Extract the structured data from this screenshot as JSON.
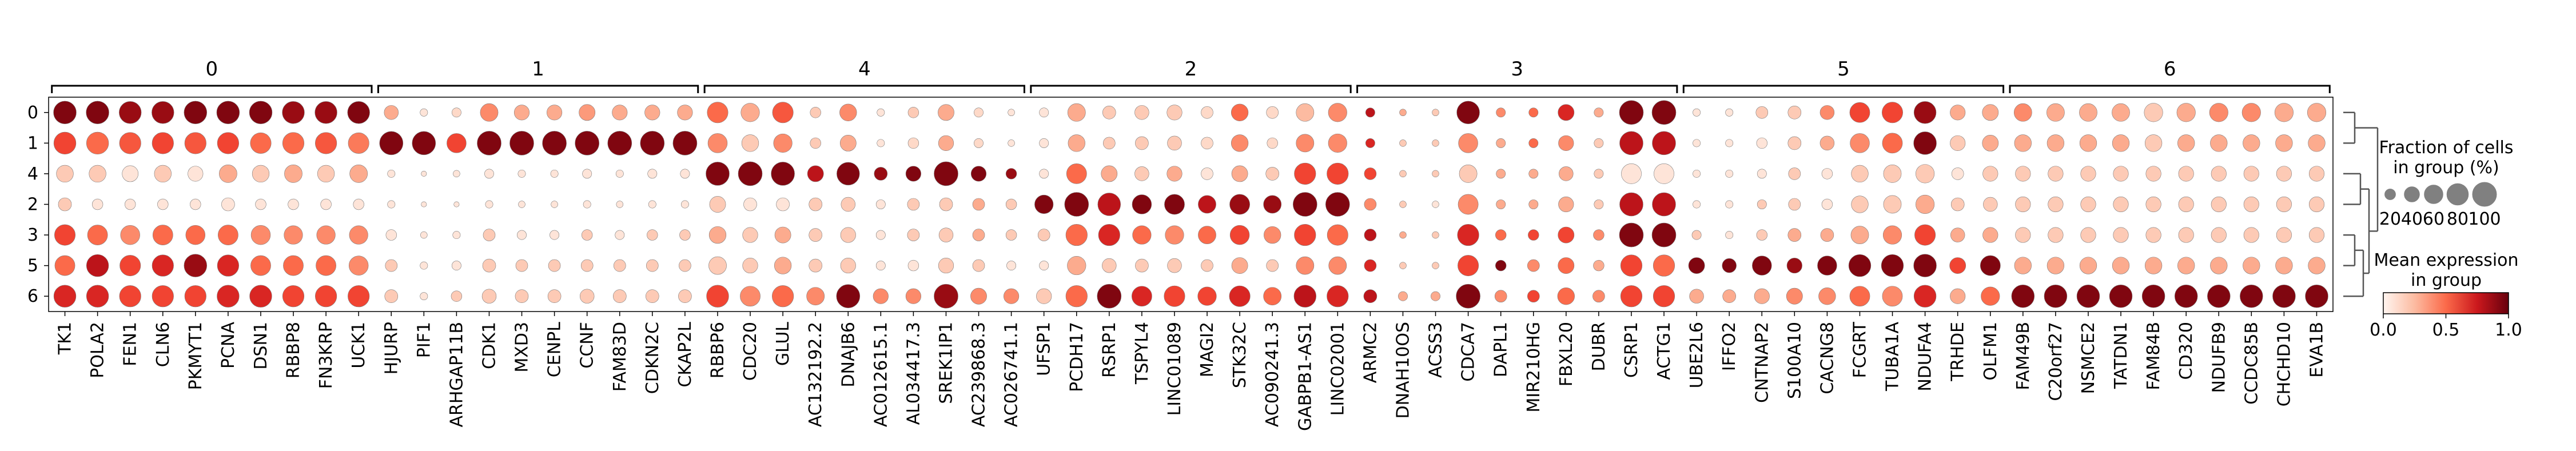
{
  "chart_data": {
    "type": "dotplot",
    "groups": [
      "0",
      "1",
      "4",
      "2",
      "3",
      "5",
      "6"
    ],
    "gene_groups": [
      {
        "label": "0",
        "genes": [
          "TK1",
          "POLA2",
          "FEN1",
          "CLN6",
          "PKMYT1",
          "PCNA",
          "DSN1",
          "RBBP8",
          "FN3KRP",
          "UCK1"
        ]
      },
      {
        "label": "1",
        "genes": [
          "HJURP",
          "PIF1",
          "ARHGAP11B",
          "CDK1",
          "MXD3",
          "CENPL",
          "CCNF",
          "FAM83D",
          "CDKN2C",
          "CKAP2L"
        ]
      },
      {
        "label": "4",
        "genes": [
          "RBBP6",
          "CDC20",
          "GLUL",
          "AC132192.2",
          "DNAJB6",
          "AC012615.1",
          "AL034417.3",
          "SREK1IP1",
          "AC239868.3",
          "AC026741.1"
        ]
      },
      {
        "label": "2",
        "genes": [
          "UFSP1",
          "PCDH17",
          "RSRP1",
          "TSPYL4",
          "LINC01089",
          "MAGI2",
          "STK32C",
          "AC090241.3",
          "GABPB1-AS1",
          "LINC02001"
        ]
      },
      {
        "label": "3",
        "genes": [
          "ARMC2",
          "DNAH10OS",
          "ACSS3",
          "CDCA7",
          "DAPL1",
          "MIR210HG",
          "FBXL20",
          "DUBR",
          "CSRP1",
          "ACTG1"
        ]
      },
      {
        "label": "5",
        "genes": [
          "UBE2L6",
          "IFFO2",
          "CNTNAP2",
          "S100A10",
          "CACNG8",
          "FCGRT",
          "TUBA1A",
          "NDUFA4",
          "TRHDE",
          "OLFM1"
        ]
      },
      {
        "label": "6",
        "genes": [
          "FAM49B",
          "C20orf27",
          "NSMCE2",
          "TATDN1",
          "FAM84B",
          "CD320",
          "NDUFB9",
          "CCDC85B",
          "CHCHD10",
          "EVA1B"
        ]
      }
    ],
    "mean_expression": [
      [
        0.95,
        0.95,
        0.9,
        0.9,
        0.95,
        0.95,
        0.95,
        0.9,
        0.9,
        0.95,
        0.3,
        0.1,
        0.15,
        0.4,
        0.3,
        0.3,
        0.35,
        0.3,
        0.3,
        0.3,
        0.5,
        0.3,
        0.55,
        0.2,
        0.4,
        0.1,
        0.2,
        0.3,
        0.15,
        0.1,
        0.1,
        0.3,
        0.2,
        0.2,
        0.2,
        0.15,
        0.5,
        0.15,
        0.25,
        0.4,
        0.8,
        0.3,
        0.2,
        0.95,
        0.4,
        0.5,
        0.7,
        0.3,
        0.95,
        0.95,
        0.1,
        0.1,
        0.2,
        0.2,
        0.4,
        0.6,
        0.6,
        0.9,
        0.3,
        0.3,
        0.4,
        0.3,
        0.3,
        0.3,
        0.2,
        0.3,
        0.4,
        0.4,
        0.3,
        0.3
      ],
      [
        0.6,
        0.5,
        0.55,
        0.6,
        0.55,
        0.6,
        0.5,
        0.5,
        0.55,
        0.45,
        0.95,
        0.95,
        0.6,
        0.95,
        0.95,
        0.95,
        0.95,
        0.95,
        0.95,
        0.95,
        0.4,
        0.2,
        0.4,
        0.2,
        0.3,
        0.1,
        0.15,
        0.3,
        0.15,
        0.1,
        0.1,
        0.3,
        0.2,
        0.2,
        0.2,
        0.15,
        0.4,
        0.15,
        0.4,
        0.4,
        0.7,
        0.2,
        0.2,
        0.4,
        0.3,
        0.5,
        0.4,
        0.2,
        0.8,
        0.8,
        0.1,
        0.1,
        0.1,
        0.2,
        0.3,
        0.4,
        0.5,
        0.95,
        0.2,
        0.3,
        0.3,
        0.3,
        0.3,
        0.3,
        0.2,
        0.3,
        0.3,
        0.3,
        0.3,
        0.3
      ],
      [
        0.2,
        0.2,
        0.1,
        0.2,
        0.1,
        0.3,
        0.2,
        0.3,
        0.2,
        0.3,
        0.1,
        0.1,
        0.1,
        0.1,
        0.1,
        0.1,
        0.1,
        0.1,
        0.1,
        0.1,
        0.95,
        0.95,
        0.95,
        0.8,
        0.95,
        0.9,
        0.95,
        0.95,
        0.95,
        0.9,
        0.1,
        0.5,
        0.3,
        0.2,
        0.3,
        0.1,
        0.3,
        0.2,
        0.6,
        0.6,
        0.6,
        0.2,
        0.2,
        0.2,
        0.3,
        0.3,
        0.3,
        0.2,
        0.1,
        0.1,
        0.1,
        0.1,
        0.1,
        0.2,
        0.1,
        0.2,
        0.2,
        0.2,
        0.1,
        0.2,
        0.2,
        0.2,
        0.2,
        0.2,
        0.2,
        0.2,
        0.2,
        0.2,
        0.2,
        0.2
      ],
      [
        0.2,
        0.1,
        0.1,
        0.1,
        0.1,
        0.1,
        0.1,
        0.1,
        0.1,
        0.1,
        0.1,
        0.1,
        0.1,
        0.1,
        0.1,
        0.1,
        0.1,
        0.1,
        0.1,
        0.1,
        0.2,
        0.1,
        0.1,
        0.2,
        0.2,
        0.1,
        0.2,
        0.2,
        0.3,
        0.2,
        0.95,
        0.95,
        0.8,
        0.95,
        0.95,
        0.8,
        0.9,
        0.9,
        0.95,
        0.95,
        0.4,
        0.2,
        0.1,
        0.4,
        0.3,
        0.3,
        0.3,
        0.2,
        0.8,
        0.8,
        0.1,
        0.1,
        0.2,
        0.2,
        0.1,
        0.2,
        0.2,
        0.3,
        0.2,
        0.2,
        0.2,
        0.2,
        0.2,
        0.2,
        0.2,
        0.2,
        0.2,
        0.2,
        0.2,
        0.2
      ],
      [
        0.6,
        0.5,
        0.4,
        0.5,
        0.5,
        0.5,
        0.4,
        0.4,
        0.4,
        0.4,
        0.1,
        0.1,
        0.1,
        0.2,
        0.1,
        0.1,
        0.2,
        0.1,
        0.2,
        0.2,
        0.3,
        0.2,
        0.3,
        0.2,
        0.2,
        0.1,
        0.2,
        0.2,
        0.3,
        0.2,
        0.2,
        0.5,
        0.7,
        0.5,
        0.4,
        0.5,
        0.6,
        0.4,
        0.6,
        0.5,
        0.8,
        0.3,
        0.2,
        0.7,
        0.5,
        0.6,
        0.6,
        0.4,
        0.95,
        0.95,
        0.2,
        0.1,
        0.2,
        0.3,
        0.3,
        0.3,
        0.4,
        0.6,
        0.3,
        0.3,
        0.2,
        0.2,
        0.2,
        0.2,
        0.2,
        0.2,
        0.2,
        0.2,
        0.2,
        0.2
      ],
      [
        0.5,
        0.8,
        0.6,
        0.7,
        0.9,
        0.7,
        0.5,
        0.5,
        0.5,
        0.4,
        0.2,
        0.1,
        0.1,
        0.2,
        0.2,
        0.2,
        0.2,
        0.2,
        0.2,
        0.2,
        0.2,
        0.2,
        0.3,
        0.2,
        0.2,
        0.1,
        0.1,
        0.2,
        0.2,
        0.1,
        0.1,
        0.3,
        0.2,
        0.2,
        0.2,
        0.2,
        0.3,
        0.2,
        0.4,
        0.4,
        0.7,
        0.2,
        0.2,
        0.6,
        0.95,
        0.4,
        0.5,
        0.3,
        0.6,
        0.5,
        0.95,
        0.95,
        0.95,
        0.9,
        0.95,
        0.95,
        0.95,
        0.95,
        0.6,
        0.95,
        0.3,
        0.3,
        0.3,
        0.3,
        0.3,
        0.3,
        0.3,
        0.3,
        0.3,
        0.3
      ],
      [
        0.7,
        0.7,
        0.6,
        0.6,
        0.6,
        0.7,
        0.7,
        0.6,
        0.6,
        0.6,
        0.2,
        0.1,
        0.2,
        0.2,
        0.2,
        0.2,
        0.2,
        0.2,
        0.2,
        0.2,
        0.6,
        0.4,
        0.5,
        0.4,
        0.95,
        0.4,
        0.4,
        0.9,
        0.4,
        0.4,
        0.2,
        0.5,
        0.95,
        0.7,
        0.6,
        0.6,
        0.7,
        0.5,
        0.8,
        0.7,
        0.8,
        0.3,
        0.3,
        0.95,
        0.4,
        0.6,
        0.5,
        0.4,
        0.6,
        0.6,
        0.3,
        0.3,
        0.3,
        0.4,
        0.4,
        0.5,
        0.4,
        0.7,
        0.3,
        0.5,
        0.95,
        0.95,
        0.95,
        0.95,
        0.95,
        0.95,
        0.95,
        0.95,
        0.95,
        0.95
      ]
    ],
    "fraction_pct": [
      [
        90,
        90,
        85,
        85,
        90,
        90,
        90,
        85,
        85,
        85,
        35,
        10,
        15,
        55,
        40,
        40,
        45,
        40,
        40,
        40,
        75,
        60,
        75,
        20,
        50,
        10,
        20,
        45,
        15,
        8,
        15,
        55,
        30,
        35,
        40,
        25,
        50,
        25,
        55,
        60,
        15,
        8,
        8,
        90,
        15,
        15,
        45,
        15,
        100,
        100,
        10,
        10,
        25,
        30,
        35,
        70,
        75,
        85,
        40,
        45,
        55,
        55,
        55,
        55,
        60,
        60,
        60,
        60,
        60,
        60
      ],
      [
        85,
        85,
        80,
        80,
        80,
        80,
        75,
        80,
        80,
        75,
        95,
        95,
        65,
        100,
        100,
        100,
        100,
        100,
        100,
        100,
        65,
        50,
        60,
        20,
        45,
        10,
        20,
        40,
        15,
        8,
        15,
        50,
        25,
        30,
        35,
        25,
        50,
        20,
        55,
        60,
        15,
        8,
        8,
        65,
        15,
        15,
        40,
        15,
        95,
        95,
        10,
        10,
        20,
        30,
        35,
        65,
        70,
        90,
        40,
        45,
        50,
        50,
        50,
        50,
        50,
        50,
        50,
        50,
        50,
        50
      ],
      [
        50,
        50,
        45,
        50,
        40,
        55,
        50,
        55,
        50,
        55,
        10,
        5,
        8,
        15,
        10,
        10,
        15,
        10,
        15,
        15,
        95,
        100,
        95,
        45,
        90,
        30,
        40,
        100,
        40,
        20,
        15,
        70,
        45,
        35,
        40,
        25,
        45,
        30,
        80,
        80,
        25,
        8,
        8,
        55,
        15,
        15,
        35,
        15,
        70,
        70,
        10,
        10,
        15,
        25,
        20,
        50,
        55,
        60,
        25,
        40,
        40,
        40,
        40,
        40,
        40,
        40,
        40,
        40,
        40,
        40
      ],
      [
        30,
        20,
        20,
        20,
        20,
        30,
        20,
        20,
        20,
        20,
        10,
        5,
        5,
        10,
        8,
        8,
        10,
        8,
        10,
        10,
        45,
        30,
        30,
        30,
        35,
        15,
        25,
        30,
        25,
        20,
        60,
        100,
        90,
        65,
        70,
        55,
        70,
        55,
        100,
        100,
        25,
        8,
        8,
        70,
        15,
        15,
        40,
        15,
        95,
        95,
        10,
        10,
        15,
        25,
        20,
        50,
        55,
        60,
        30,
        35,
        40,
        40,
        40,
        40,
        40,
        40,
        40,
        40,
        40,
        40
      ],
      [
        75,
        70,
        65,
        70,
        65,
        70,
        65,
        60,
        60,
        60,
        20,
        8,
        10,
        25,
        15,
        15,
        20,
        15,
        20,
        20,
        50,
        40,
        45,
        30,
        40,
        15,
        25,
        35,
        25,
        20,
        25,
        80,
        80,
        60,
        60,
        55,
        65,
        50,
        80,
        75,
        25,
        8,
        8,
        80,
        20,
        20,
        45,
        20,
        100,
        100,
        15,
        10,
        20,
        30,
        30,
        55,
        60,
        75,
        35,
        40,
        40,
        40,
        40,
        40,
        40,
        40,
        40,
        40,
        40,
        40
      ],
      [
        70,
        85,
        75,
        80,
        90,
        80,
        70,
        70,
        70,
        65,
        25,
        10,
        15,
        30,
        25,
        25,
        25,
        25,
        25,
        25,
        55,
        40,
        50,
        30,
        40,
        15,
        20,
        40,
        25,
        15,
        15,
        60,
        35,
        30,
        35,
        25,
        45,
        25,
        55,
        55,
        25,
        8,
        8,
        75,
        20,
        25,
        45,
        20,
        80,
        80,
        45,
        35,
        65,
        40,
        65,
        85,
        85,
        90,
        45,
        70,
        50,
        50,
        50,
        50,
        50,
        50,
        50,
        50,
        50,
        50
      ],
      [
        85,
        85,
        80,
        80,
        80,
        85,
        85,
        80,
        80,
        80,
        30,
        10,
        20,
        35,
        30,
        30,
        35,
        30,
        30,
        30,
        85,
        70,
        80,
        55,
        95,
        40,
        40,
        100,
        45,
        40,
        40,
        80,
        100,
        70,
        75,
        60,
        75,
        55,
        85,
        80,
        30,
        15,
        15,
        100,
        25,
        25,
        50,
        25,
        80,
        80,
        35,
        30,
        40,
        45,
        50,
        70,
        70,
        85,
        40,
        60,
        90,
        90,
        90,
        90,
        90,
        90,
        90,
        90,
        90,
        90
      ]
    ],
    "size_legend": {
      "title_line1": "Fraction of cells",
      "title_line2": "in group (%)",
      "values": [
        20,
        40,
        60,
        80,
        100
      ],
      "tick_labels": [
        "20",
        "40",
        "60",
        "80",
        "100"
      ]
    },
    "color_legend": {
      "title_line1": "Mean expression",
      "title_line2": "in group",
      "ticks": [
        "0.0",
        "0.5",
        "1.0"
      ],
      "range": [
        0,
        1
      ]
    },
    "colormap": "Reds",
    "dendrogram": "present, right of plot"
  }
}
